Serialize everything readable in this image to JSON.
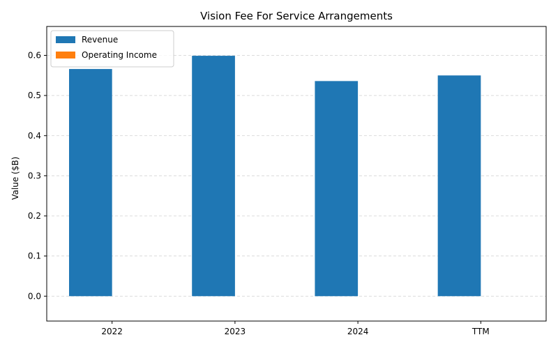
{
  "chart_data": {
    "type": "bar",
    "title": "Vision Fee For Service Arrangements",
    "xlabel": "",
    "ylabel": "Value ($B)",
    "categories": [
      "2022",
      "2023",
      "2024",
      "TTM"
    ],
    "series": [
      {
        "name": "Revenue",
        "color": "#1f77b4",
        "values": [
          0.566,
          0.599,
          0.536,
          0.55
        ]
      },
      {
        "name": "Operating Income",
        "color": "#ff7f0e",
        "values": [
          0,
          0,
          0,
          0
        ]
      }
    ],
    "ylim": [
      -0.062,
      0.672
    ],
    "yticks": [
      "0.0",
      "0.1",
      "0.2",
      "0.3",
      "0.4",
      "0.5",
      "0.6"
    ],
    "grid": true,
    "legend_position": "top-left"
  }
}
